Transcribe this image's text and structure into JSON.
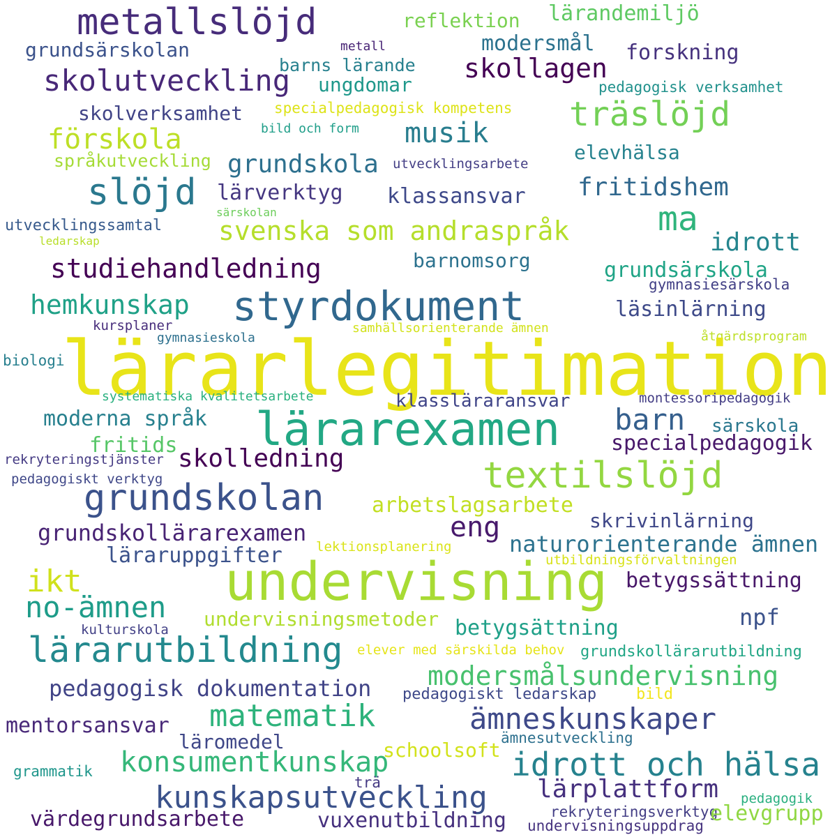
{
  "cloud": {
    "words": [
      {
        "text": "metallslöjd",
        "color": "#472c7a"
      },
      {
        "text": "lärandemiljö",
        "color": "#5ec962"
      },
      {
        "text": "reflektion",
        "color": "#7ad151"
      },
      {
        "text": "modersmål",
        "color": "#2c728e"
      },
      {
        "text": "grundsärskolan",
        "color": "#3b528b"
      },
      {
        "text": "metall",
        "color": "#482475"
      },
      {
        "text": "forskning",
        "color": "#46327e"
      },
      {
        "text": "skollagen",
        "color": "#440154"
      },
      {
        "text": "barns lärande",
        "color": "#27808e"
      },
      {
        "text": "skolutveckling",
        "color": "#482878"
      },
      {
        "text": "ungdomar",
        "color": "#1f988b"
      },
      {
        "text": "pedagogisk verksamhet",
        "color": "#21918c"
      },
      {
        "text": "skolverksamhet",
        "color": "#414487"
      },
      {
        "text": "specialpedagogisk kompetens",
        "color": "#dde318"
      },
      {
        "text": "träslöjd",
        "color": "#73d056"
      },
      {
        "text": "förskola",
        "color": "#bddf26"
      },
      {
        "text": "bild och form",
        "color": "#1f9e89"
      },
      {
        "text": "musik",
        "color": "#287d8e"
      },
      {
        "text": "elevhälsa",
        "color": "#26828e"
      },
      {
        "text": "språkutveckling",
        "color": "#a5db36"
      },
      {
        "text": "grundskola",
        "color": "#2d708e"
      },
      {
        "text": "utvecklingsarbete",
        "color": "#433e85"
      },
      {
        "text": "slöjd",
        "color": "#2a788e"
      },
      {
        "text": "fritidshem",
        "color": "#31688e"
      },
      {
        "text": "lärverktyg",
        "color": "#453781"
      },
      {
        "text": "klassansvar",
        "color": "#3e4989"
      },
      {
        "text": "särskolan",
        "color": "#6ccd5a"
      },
      {
        "text": "ma",
        "color": "#2fb47c"
      },
      {
        "text": "utvecklingssamtal",
        "color": "#375a8c"
      },
      {
        "text": "svenska som andraspråk",
        "color": "#b5de2b"
      },
      {
        "text": "idrott",
        "color": "#25858e"
      },
      {
        "text": "ledarskap",
        "color": "#b8de29"
      },
      {
        "text": "studiehandledning",
        "color": "#440154"
      },
      {
        "text": "barnomsorg",
        "color": "#2c728e"
      },
      {
        "text": "grundsärskola",
        "color": "#20a486"
      },
      {
        "text": "gymnasiesärskola",
        "color": "#424086"
      },
      {
        "text": "hemkunskap",
        "color": "#1fa187"
      },
      {
        "text": "styrdokument",
        "color": "#31688e"
      },
      {
        "text": "läsinlärning",
        "color": "#3e4a89"
      },
      {
        "text": "kursplaner",
        "color": "#472d7b"
      },
      {
        "text": "samhällsorienterande ämnen",
        "color": "#d2e21b"
      },
      {
        "text": "gymnasieskola",
        "color": "#2d708e"
      },
      {
        "text": "åtgärdsprogram",
        "color": "#bddf26"
      },
      {
        "text": "lärarlegitimation",
        "color": "#e8e419"
      },
      {
        "text": "biologi",
        "color": "#277f8e"
      },
      {
        "text": "systematiska kvalitetsarbete",
        "color": "#2ab07f"
      },
      {
        "text": "klassläraransvar",
        "color": "#404588"
      },
      {
        "text": "montessoripedagogik",
        "color": "#433d84"
      },
      {
        "text": "moderna språk",
        "color": "#27808e"
      },
      {
        "text": "lärarexamen",
        "color": "#22a884"
      },
      {
        "text": "barn",
        "color": "#355f8d"
      },
      {
        "text": "särskola",
        "color": "#2a778e"
      },
      {
        "text": "fritids",
        "color": "#56c667"
      },
      {
        "text": "specialpedagogik",
        "color": "#48186a"
      },
      {
        "text": "rekryteringstjänster",
        "color": "#443a83"
      },
      {
        "text": "skolledning",
        "color": "#440154"
      },
      {
        "text": "textilslöjd",
        "color": "#93d741"
      },
      {
        "text": "pedagogiskt verktyg",
        "color": "#3f4788"
      },
      {
        "text": "grundskolan",
        "color": "#3b528b"
      },
      {
        "text": "arbetslagsarbete",
        "color": "#c2df23"
      },
      {
        "text": "skrivinlärning",
        "color": "#3f4788"
      },
      {
        "text": "eng",
        "color": "#481a6c"
      },
      {
        "text": "grundskollärarexamen",
        "color": "#482374"
      },
      {
        "text": "naturorienterande ämnen",
        "color": "#2c728e"
      },
      {
        "text": "lektionsplanering",
        "color": "#dae319"
      },
      {
        "text": "läraruppgifter",
        "color": "#3b528b"
      },
      {
        "text": "utbildningsförvaltningen",
        "color": "#d8e219"
      },
      {
        "text": "undervisning",
        "color": "#a8db34"
      },
      {
        "text": "ikt",
        "color": "#d0e11c"
      },
      {
        "text": "betygssättning",
        "color": "#481769"
      },
      {
        "text": "no-ämnen",
        "color": "#1e9c89"
      },
      {
        "text": "undervisningsmetoder",
        "color": "#b0dd2f"
      },
      {
        "text": "npf",
        "color": "#3b528b"
      },
      {
        "text": "betygsättning",
        "color": "#1fa088"
      },
      {
        "text": "kulturskola",
        "color": "#424086"
      },
      {
        "text": "lärarutbildning",
        "color": "#23898e"
      },
      {
        "text": "elever med särskilda behov",
        "color": "#e5e419"
      },
      {
        "text": "grundskollärarutbildning",
        "color": "#21a685"
      },
      {
        "text": "modersmålsundervisning",
        "color": "#48c16e"
      },
      {
        "text": "pedagogisk dokumentation",
        "color": "#414487"
      },
      {
        "text": "pedagogiskt ledarskap",
        "color": "#3e4989"
      },
      {
        "text": "bild",
        "color": "#f1e51d"
      },
      {
        "text": "matematik",
        "color": "#2eb37c"
      },
      {
        "text": "ämneskunskaper",
        "color": "#3e4989"
      },
      {
        "text": "mentorsansvar",
        "color": "#482878"
      },
      {
        "text": "läromedel",
        "color": "#3f4788"
      },
      {
        "text": "ämnesutveckling",
        "color": "#2d708e"
      },
      {
        "text": "schoolsoft",
        "color": "#d2e21b"
      },
      {
        "text": "konsumentkunskap",
        "color": "#35b779"
      },
      {
        "text": "idrott och hälsa",
        "color": "#26828e"
      },
      {
        "text": "grammatik",
        "color": "#1f968b"
      },
      {
        "text": "trä",
        "color": "#443983"
      },
      {
        "text": "lärplattform",
        "color": "#46307e"
      },
      {
        "text": "kunskapsutveckling",
        "color": "#3b528b"
      },
      {
        "text": "pedagogik",
        "color": "#29af7f"
      },
      {
        "text": "rekryteringsverktyg",
        "color": "#433e85"
      },
      {
        "text": "elevgrupp",
        "color": "#90d743"
      },
      {
        "text": "värdegrundsarbete",
        "color": "#48186a"
      },
      {
        "text": "vuxenutbildning",
        "color": "#46307e"
      },
      {
        "text": "undervisningsuppdrag",
        "color": "#46337f"
      }
    ]
  }
}
